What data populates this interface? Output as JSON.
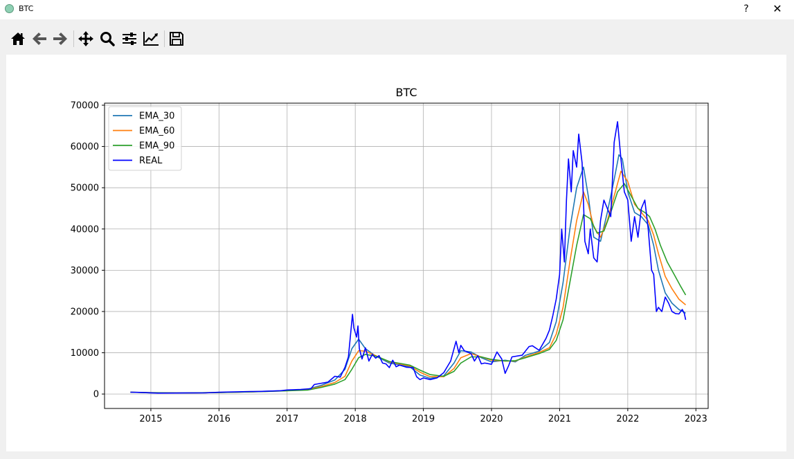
{
  "window": {
    "title": "BTC",
    "help_label": "?",
    "close_label": "✕"
  },
  "toolbar": {
    "tools": [
      {
        "name": "home",
        "icon": "home-icon"
      },
      {
        "name": "back",
        "icon": "arrow-left-icon"
      },
      {
        "name": "forward",
        "icon": "arrow-right-icon"
      },
      {
        "name": "pan",
        "icon": "move-icon"
      },
      {
        "name": "zoom",
        "icon": "zoom-icon"
      },
      {
        "name": "configure-subplots",
        "icon": "sliders-icon"
      },
      {
        "name": "edit-axes",
        "icon": "chart-line-icon"
      },
      {
        "name": "save",
        "icon": "save-icon"
      }
    ]
  },
  "chart_data": {
    "type": "line",
    "title": "BTC",
    "xlabel": "",
    "ylabel": "",
    "xlim": [
      2014.32,
      2023.18
    ],
    "ylim": [
      -3500,
      70500
    ],
    "xticks": [
      2015,
      2016,
      2017,
      2018,
      2019,
      2020,
      2021,
      2022,
      2023
    ],
    "yticks": [
      0,
      10000,
      20000,
      30000,
      40000,
      50000,
      60000,
      70000
    ],
    "grid": true,
    "legend_position": "top-left",
    "series": [
      {
        "name": "EMA_30",
        "color": "#1f77b4",
        "points": [
          [
            2014.7,
            450
          ],
          [
            2015.0,
            300
          ],
          [
            2015.5,
            250
          ],
          [
            2016.0,
            380
          ],
          [
            2016.5,
            560
          ],
          [
            2017.0,
            850
          ],
          [
            2017.3,
            1150
          ],
          [
            2017.5,
            2100
          ],
          [
            2017.7,
            3400
          ],
          [
            2017.85,
            6000
          ],
          [
            2017.95,
            11000
          ],
          [
            2018.05,
            13300
          ],
          [
            2018.15,
            11000
          ],
          [
            2018.3,
            9200
          ],
          [
            2018.5,
            7500
          ],
          [
            2018.8,
            6600
          ],
          [
            2018.95,
            4600
          ],
          [
            2019.1,
            3800
          ],
          [
            2019.3,
            4400
          ],
          [
            2019.45,
            7500
          ],
          [
            2019.55,
            10500
          ],
          [
            2019.7,
            10200
          ],
          [
            2019.85,
            8800
          ],
          [
            2020.0,
            7800
          ],
          [
            2020.2,
            8200
          ],
          [
            2020.35,
            7800
          ],
          [
            2020.5,
            9400
          ],
          [
            2020.7,
            10400
          ],
          [
            2020.85,
            12500
          ],
          [
            2020.95,
            17500
          ],
          [
            2021.05,
            27000
          ],
          [
            2021.15,
            40000
          ],
          [
            2021.25,
            50000
          ],
          [
            2021.35,
            55000
          ],
          [
            2021.42,
            48000
          ],
          [
            2021.5,
            38000
          ],
          [
            2021.6,
            37000
          ],
          [
            2021.7,
            44000
          ],
          [
            2021.8,
            52000
          ],
          [
            2021.87,
            58000
          ],
          [
            2021.92,
            57000
          ],
          [
            2022.0,
            49000
          ],
          [
            2022.1,
            44000
          ],
          [
            2022.2,
            43000
          ],
          [
            2022.3,
            41000
          ],
          [
            2022.38,
            36000
          ],
          [
            2022.45,
            30000
          ],
          [
            2022.55,
            24500
          ],
          [
            2022.65,
            22000
          ],
          [
            2022.75,
            20500
          ],
          [
            2022.85,
            19600
          ]
        ]
      },
      {
        "name": "EMA_60",
        "color": "#ff7f0e",
        "points": [
          [
            2014.7,
            450
          ],
          [
            2015.0,
            320
          ],
          [
            2015.5,
            250
          ],
          [
            2016.0,
            370
          ],
          [
            2016.5,
            540
          ],
          [
            2017.0,
            820
          ],
          [
            2017.3,
            1050
          ],
          [
            2017.5,
            1800
          ],
          [
            2017.7,
            2800
          ],
          [
            2017.85,
            4300
          ],
          [
            2017.95,
            8000
          ],
          [
            2018.05,
            10500
          ],
          [
            2018.15,
            10400
          ],
          [
            2018.3,
            9300
          ],
          [
            2018.5,
            7800
          ],
          [
            2018.8,
            6800
          ],
          [
            2018.95,
            5300
          ],
          [
            2019.1,
            4200
          ],
          [
            2019.3,
            4200
          ],
          [
            2019.45,
            6200
          ],
          [
            2019.55,
            8800
          ],
          [
            2019.7,
            9800
          ],
          [
            2019.85,
            9000
          ],
          [
            2020.0,
            8200
          ],
          [
            2020.2,
            8000
          ],
          [
            2020.35,
            8000
          ],
          [
            2020.5,
            9000
          ],
          [
            2020.7,
            10100
          ],
          [
            2020.85,
            11200
          ],
          [
            2020.95,
            14500
          ],
          [
            2021.05,
            21000
          ],
          [
            2021.15,
            32000
          ],
          [
            2021.25,
            42000
          ],
          [
            2021.35,
            49000
          ],
          [
            2021.42,
            46000
          ],
          [
            2021.5,
            40500
          ],
          [
            2021.6,
            38000
          ],
          [
            2021.7,
            42000
          ],
          [
            2021.8,
            48000
          ],
          [
            2021.9,
            54000
          ],
          [
            2022.0,
            51500
          ],
          [
            2022.1,
            46000
          ],
          [
            2022.2,
            44000
          ],
          [
            2022.3,
            42000
          ],
          [
            2022.38,
            38500
          ],
          [
            2022.45,
            34000
          ],
          [
            2022.55,
            28500
          ],
          [
            2022.65,
            25500
          ],
          [
            2022.75,
            23000
          ],
          [
            2022.85,
            21600
          ]
        ]
      },
      {
        "name": "EMA_90",
        "color": "#2ca02c",
        "points": [
          [
            2014.7,
            450
          ],
          [
            2015.0,
            330
          ],
          [
            2015.5,
            260
          ],
          [
            2016.0,
            360
          ],
          [
            2016.5,
            520
          ],
          [
            2017.0,
            780
          ],
          [
            2017.3,
            950
          ],
          [
            2017.5,
            1600
          ],
          [
            2017.7,
            2400
          ],
          [
            2017.85,
            3500
          ],
          [
            2017.95,
            6000
          ],
          [
            2018.05,
            8800
          ],
          [
            2018.15,
            9600
          ],
          [
            2018.3,
            9200
          ],
          [
            2018.5,
            7900
          ],
          [
            2018.8,
            7000
          ],
          [
            2018.95,
            5800
          ],
          [
            2019.1,
            4700
          ],
          [
            2019.3,
            4300
          ],
          [
            2019.45,
            5500
          ],
          [
            2019.55,
            7500
          ],
          [
            2019.7,
            9000
          ],
          [
            2019.85,
            9000
          ],
          [
            2020.0,
            8400
          ],
          [
            2020.2,
            8000
          ],
          [
            2020.35,
            8100
          ],
          [
            2020.5,
            8800
          ],
          [
            2020.7,
            9800
          ],
          [
            2020.85,
            10800
          ],
          [
            2020.95,
            13000
          ],
          [
            2021.05,
            18000
          ],
          [
            2021.15,
            27000
          ],
          [
            2021.25,
            36000
          ],
          [
            2021.35,
            43500
          ],
          [
            2021.45,
            42500
          ],
          [
            2021.55,
            39000
          ],
          [
            2021.65,
            39500
          ],
          [
            2021.75,
            44000
          ],
          [
            2021.85,
            49000
          ],
          [
            2021.95,
            51000
          ],
          [
            2022.05,
            48000
          ],
          [
            2022.15,
            45000
          ],
          [
            2022.25,
            44000
          ],
          [
            2022.32,
            43000
          ],
          [
            2022.4,
            40000
          ],
          [
            2022.48,
            36000
          ],
          [
            2022.58,
            32000
          ],
          [
            2022.68,
            29000
          ],
          [
            2022.78,
            26000
          ],
          [
            2022.85,
            24000
          ]
        ]
      },
      {
        "name": "REAL",
        "color": "#0000ff",
        "points": [
          [
            2014.7,
            450
          ],
          [
            2014.85,
            400
          ],
          [
            2015.0,
            300
          ],
          [
            2015.1,
            230
          ],
          [
            2015.5,
            260
          ],
          [
            2015.8,
            280
          ],
          [
            2016.0,
            420
          ],
          [
            2016.45,
            600
          ],
          [
            2016.6,
            620
          ],
          [
            2016.9,
            800
          ],
          [
            2017.0,
            980
          ],
          [
            2017.2,
            1100
          ],
          [
            2017.35,
            1300
          ],
          [
            2017.4,
            2300
          ],
          [
            2017.5,
            2600
          ],
          [
            2017.6,
            2900
          ],
          [
            2017.7,
            4300
          ],
          [
            2017.78,
            4100
          ],
          [
            2017.85,
            6500
          ],
          [
            2017.9,
            9000
          ],
          [
            2017.96,
            19300
          ],
          [
            2017.98,
            16000
          ],
          [
            2018.02,
            13800
          ],
          [
            2018.04,
            16500
          ],
          [
            2018.06,
            11000
          ],
          [
            2018.1,
            8500
          ],
          [
            2018.15,
            11200
          ],
          [
            2018.2,
            8000
          ],
          [
            2018.25,
            9600
          ],
          [
            2018.3,
            8700
          ],
          [
            2018.35,
            9300
          ],
          [
            2018.4,
            7500
          ],
          [
            2018.45,
            7300
          ],
          [
            2018.5,
            6400
          ],
          [
            2018.55,
            8200
          ],
          [
            2018.6,
            6600
          ],
          [
            2018.65,
            7000
          ],
          [
            2018.75,
            6500
          ],
          [
            2018.85,
            6400
          ],
          [
            2018.9,
            4200
          ],
          [
            2018.95,
            3500
          ],
          [
            2019.0,
            3900
          ],
          [
            2019.1,
            3500
          ],
          [
            2019.2,
            3900
          ],
          [
            2019.3,
            5200
          ],
          [
            2019.4,
            8000
          ],
          [
            2019.48,
            12800
          ],
          [
            2019.52,
            10000
          ],
          [
            2019.55,
            11800
          ],
          [
            2019.6,
            10500
          ],
          [
            2019.7,
            9800
          ],
          [
            2019.75,
            8000
          ],
          [
            2019.8,
            9300
          ],
          [
            2019.85,
            7300
          ],
          [
            2019.9,
            7500
          ],
          [
            2020.0,
            7200
          ],
          [
            2020.08,
            10200
          ],
          [
            2020.15,
            8500
          ],
          [
            2020.2,
            5000
          ],
          [
            2020.25,
            6800
          ],
          [
            2020.3,
            9000
          ],
          [
            2020.45,
            9400
          ],
          [
            2020.55,
            11500
          ],
          [
            2020.6,
            11700
          ],
          [
            2020.7,
            10600
          ],
          [
            2020.8,
            13500
          ],
          [
            2020.85,
            15500
          ],
          [
            2020.9,
            19000
          ],
          [
            2020.95,
            23000
          ],
          [
            2021.0,
            29000
          ],
          [
            2021.03,
            40000
          ],
          [
            2021.07,
            32000
          ],
          [
            2021.1,
            47000
          ],
          [
            2021.13,
            57000
          ],
          [
            2021.17,
            49000
          ],
          [
            2021.2,
            59000
          ],
          [
            2021.25,
            55000
          ],
          [
            2021.28,
            63000
          ],
          [
            2021.33,
            56000
          ],
          [
            2021.37,
            37000
          ],
          [
            2021.42,
            34000
          ],
          [
            2021.45,
            40000
          ],
          [
            2021.5,
            33000
          ],
          [
            2021.55,
            32000
          ],
          [
            2021.6,
            42000
          ],
          [
            2021.65,
            47000
          ],
          [
            2021.7,
            45000
          ],
          [
            2021.75,
            43000
          ],
          [
            2021.8,
            61000
          ],
          [
            2021.85,
            66000
          ],
          [
            2021.9,
            57000
          ],
          [
            2021.95,
            49000
          ],
          [
            2022.0,
            47000
          ],
          [
            2022.05,
            37000
          ],
          [
            2022.1,
            43000
          ],
          [
            2022.15,
            38000
          ],
          [
            2022.2,
            45000
          ],
          [
            2022.25,
            47000
          ],
          [
            2022.3,
            40000
          ],
          [
            2022.35,
            30000
          ],
          [
            2022.38,
            29000
          ],
          [
            2022.42,
            20000
          ],
          [
            2022.45,
            21000
          ],
          [
            2022.5,
            20000
          ],
          [
            2022.55,
            23500
          ],
          [
            2022.6,
            22000
          ],
          [
            2022.65,
            20000
          ],
          [
            2022.7,
            19500
          ],
          [
            2022.75,
            19400
          ],
          [
            2022.8,
            20500
          ],
          [
            2022.83,
            19500
          ],
          [
            2022.85,
            18000
          ]
        ]
      }
    ]
  }
}
